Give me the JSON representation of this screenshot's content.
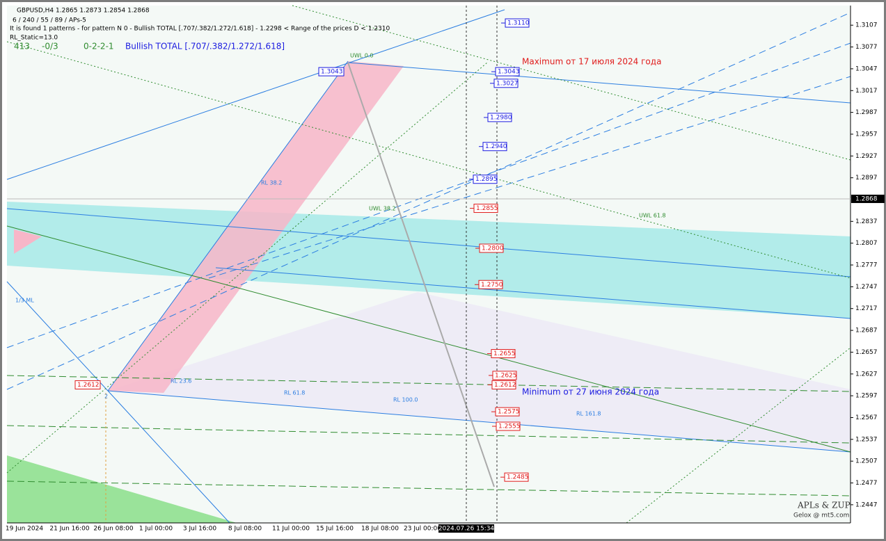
{
  "header": {
    "symbol_line": "GBPUSD,H4  1.2865 1.2873 1.2854 1.2868",
    "params": "6 / 240 / 55 / 89 / APs-5",
    "pattern": "It is found 1 patterns  -  for pattern N 0 - Bullish TOTAL [.707/.382/1.272/1.618] - 1.2298 < Range of the prices D < 1.2310",
    "static": "RL_Static=13.0",
    "row": [
      "413",
      "-0/3",
      "0-2-2-1",
      "Bullish TOTAL [.707/.382/1.272/1.618]"
    ]
  },
  "price_axis": {
    "ylim": [
      1.2422,
      1.3134
    ],
    "ticks": [
      1.3107,
      1.3077,
      1.3047,
      1.3017,
      1.2987,
      1.2957,
      1.2927,
      1.2897,
      1.2837,
      1.2807,
      1.2777,
      1.2747,
      1.2717,
      1.2687,
      1.2657,
      1.2627,
      1.2597,
      1.2567,
      1.2537,
      1.2507,
      1.2477,
      1.2447
    ],
    "current": 1.2868
  },
  "time_axis": {
    "labels": [
      "19 Jun 2024",
      "21 Jun 16:00",
      "26 Jun 08:00",
      "1 Jul 00:00",
      "3 Jul 16:00",
      "8 Jul 08:00",
      "11 Jul 00:00",
      "15 Jul 16:00",
      "18 Jul 08:00",
      "23 Jul 00:00",
      "2024.07.26 15:34"
    ]
  },
  "levels": [
    {
      "value": 1.311,
      "label": "1.3110"
    },
    {
      "value": 1.3043,
      "label": "1.3043"
    },
    {
      "value": 1.3027,
      "label": "1.3027"
    },
    {
      "value": 1.298,
      "label": "1.2980"
    },
    {
      "value": 1.294,
      "label": "1.2940"
    },
    {
      "value": 1.2895,
      "label": "1.2895"
    },
    {
      "value": 1.2855,
      "label": "1.2855"
    },
    {
      "value": 1.28,
      "label": "1.2800"
    },
    {
      "value": 1.275,
      "label": "1.2750"
    },
    {
      "value": 1.2655,
      "label": "1.2655"
    },
    {
      "value": 1.2625,
      "label": "1.2625"
    },
    {
      "value": 1.2612,
      "label": "1.2612"
    },
    {
      "value": 1.2575,
      "label": "1.2575"
    },
    {
      "value": 1.2555,
      "label": "1.2555"
    },
    {
      "value": 1.2485,
      "label": "1.2485"
    }
  ],
  "extremes": {
    "high": {
      "value": 1.3043,
      "label": "1.3043"
    },
    "low": {
      "value": 1.2612,
      "label": "1.2612"
    }
  },
  "annotations": {
    "max": "Maximum от 17 июля 2024 года",
    "min": "Minimum от 27 июня 2024 года"
  },
  "line_labels": [
    "UWL 0.0",
    "UWL 38.2",
    "UWL 61.8",
    "RL 38.2",
    "RL 23.6",
    "RL 61.8",
    "RL 100.0",
    "RL 161.8",
    "1/3 ML",
    "2"
  ],
  "footer": [
    "APLs & ZUP",
    "Gelox @ mt5.com"
  ]
}
